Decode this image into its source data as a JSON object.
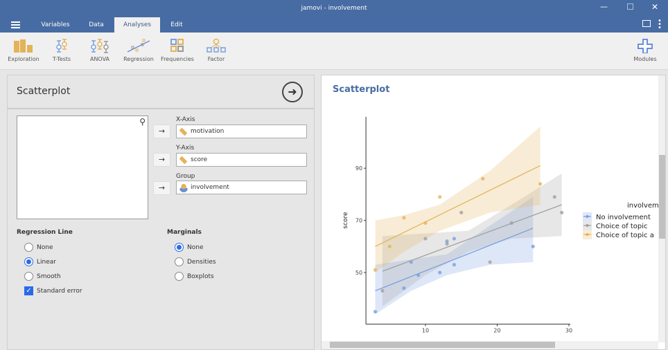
{
  "window": {
    "title": "jamovi - involvement"
  },
  "tabs": [
    {
      "label": "Variables"
    },
    {
      "label": "Data"
    },
    {
      "label": "Analyses",
      "active": true
    },
    {
      "label": "Edit"
    }
  ],
  "ribbon": [
    {
      "label": "Exploration",
      "icon": "bar-chart-icon"
    },
    {
      "label": "T-Tests",
      "icon": "ttest-icon"
    },
    {
      "label": "ANOVA",
      "icon": "anova-icon"
    },
    {
      "label": "Regression",
      "icon": "regression-icon"
    },
    {
      "label": "Frequencies",
      "icon": "frequencies-icon"
    },
    {
      "label": "Factor",
      "icon": "factor-icon"
    }
  ],
  "modules_label": "Modules",
  "options": {
    "title": "Scatterplot",
    "x_axis_label": "X-Axis",
    "x_axis_value": "motivation",
    "y_axis_label": "Y-Axis",
    "y_axis_value": "score",
    "group_label": "Group",
    "group_value": "involvement",
    "regression": {
      "heading": "Regression Line",
      "items": [
        "None",
        "Linear",
        "Smooth"
      ],
      "selected": "Linear",
      "se_label": "Standard error",
      "se_checked": true
    },
    "marginals": {
      "heading": "Marginals",
      "items": [
        "None",
        "Densities",
        "Boxplots"
      ],
      "selected": "None"
    }
  },
  "results": {
    "title": "Scatterplot"
  },
  "colors": {
    "header": "#476ca3",
    "accent": "#2a6ae8",
    "blue": "#7b9fe0",
    "gray": "#a0a0a0",
    "orange": "#e3b35a"
  },
  "chart_data": {
    "type": "scatter",
    "xlabel": "",
    "ylabel": "score",
    "xlim": [
      1.7,
      30.2
    ],
    "ylim": [
      30.2,
      109.7
    ],
    "xticks": [
      10,
      20,
      30
    ],
    "yticks": [
      50,
      70,
      90
    ],
    "grid": false,
    "legend": {
      "title": "involvem",
      "placement": "right"
    },
    "series": [
      {
        "name": "No involvement",
        "color": "#7b9fe0",
        "points": [
          [
            3,
            35
          ],
          [
            7,
            44
          ],
          [
            8,
            54
          ],
          [
            9,
            49
          ],
          [
            12,
            50
          ],
          [
            13,
            62
          ],
          [
            14,
            53
          ],
          [
            14,
            63
          ],
          [
            25,
            60
          ]
        ],
        "fit": [
          [
            3,
            43
          ],
          [
            25,
            67
          ]
        ],
        "band": [
          [
            3,
            34,
            53
          ],
          [
            8,
            43,
            55
          ],
          [
            13,
            49,
            57
          ],
          [
            19,
            53,
            68
          ],
          [
            25,
            54,
            79
          ]
        ]
      },
      {
        "name": "Choice of topic",
        "color": "#a0a0a0",
        "points": [
          [
            4,
            43
          ],
          [
            10,
            63
          ],
          [
            13,
            61
          ],
          [
            15,
            73
          ],
          [
            19,
            54
          ],
          [
            22,
            69
          ],
          [
            28,
            79
          ],
          [
            29,
            73
          ]
        ],
        "fit": [
          [
            4,
            50.5
          ],
          [
            29,
            76
          ]
        ],
        "band": [
          [
            4,
            37,
            64
          ],
          [
            10,
            49,
            65
          ],
          [
            16,
            58,
            66
          ],
          [
            22,
            63,
            76
          ],
          [
            29,
            64,
            88
          ]
        ]
      },
      {
        "name": "Choice of topic a",
        "color": "#e3b35a",
        "points": [
          [
            3,
            51
          ],
          [
            5,
            60
          ],
          [
            7,
            71
          ],
          [
            10,
            69
          ],
          [
            12,
            79
          ],
          [
            18,
            86
          ],
          [
            26,
            84
          ]
        ],
        "fit": [
          [
            3,
            60
          ],
          [
            26,
            91
          ]
        ],
        "band": [
          [
            3,
            50,
            70
          ],
          [
            7,
            58,
            72
          ],
          [
            12,
            66,
            76
          ],
          [
            19,
            73,
            89
          ],
          [
            26,
            76,
            106
          ]
        ]
      }
    ]
  }
}
